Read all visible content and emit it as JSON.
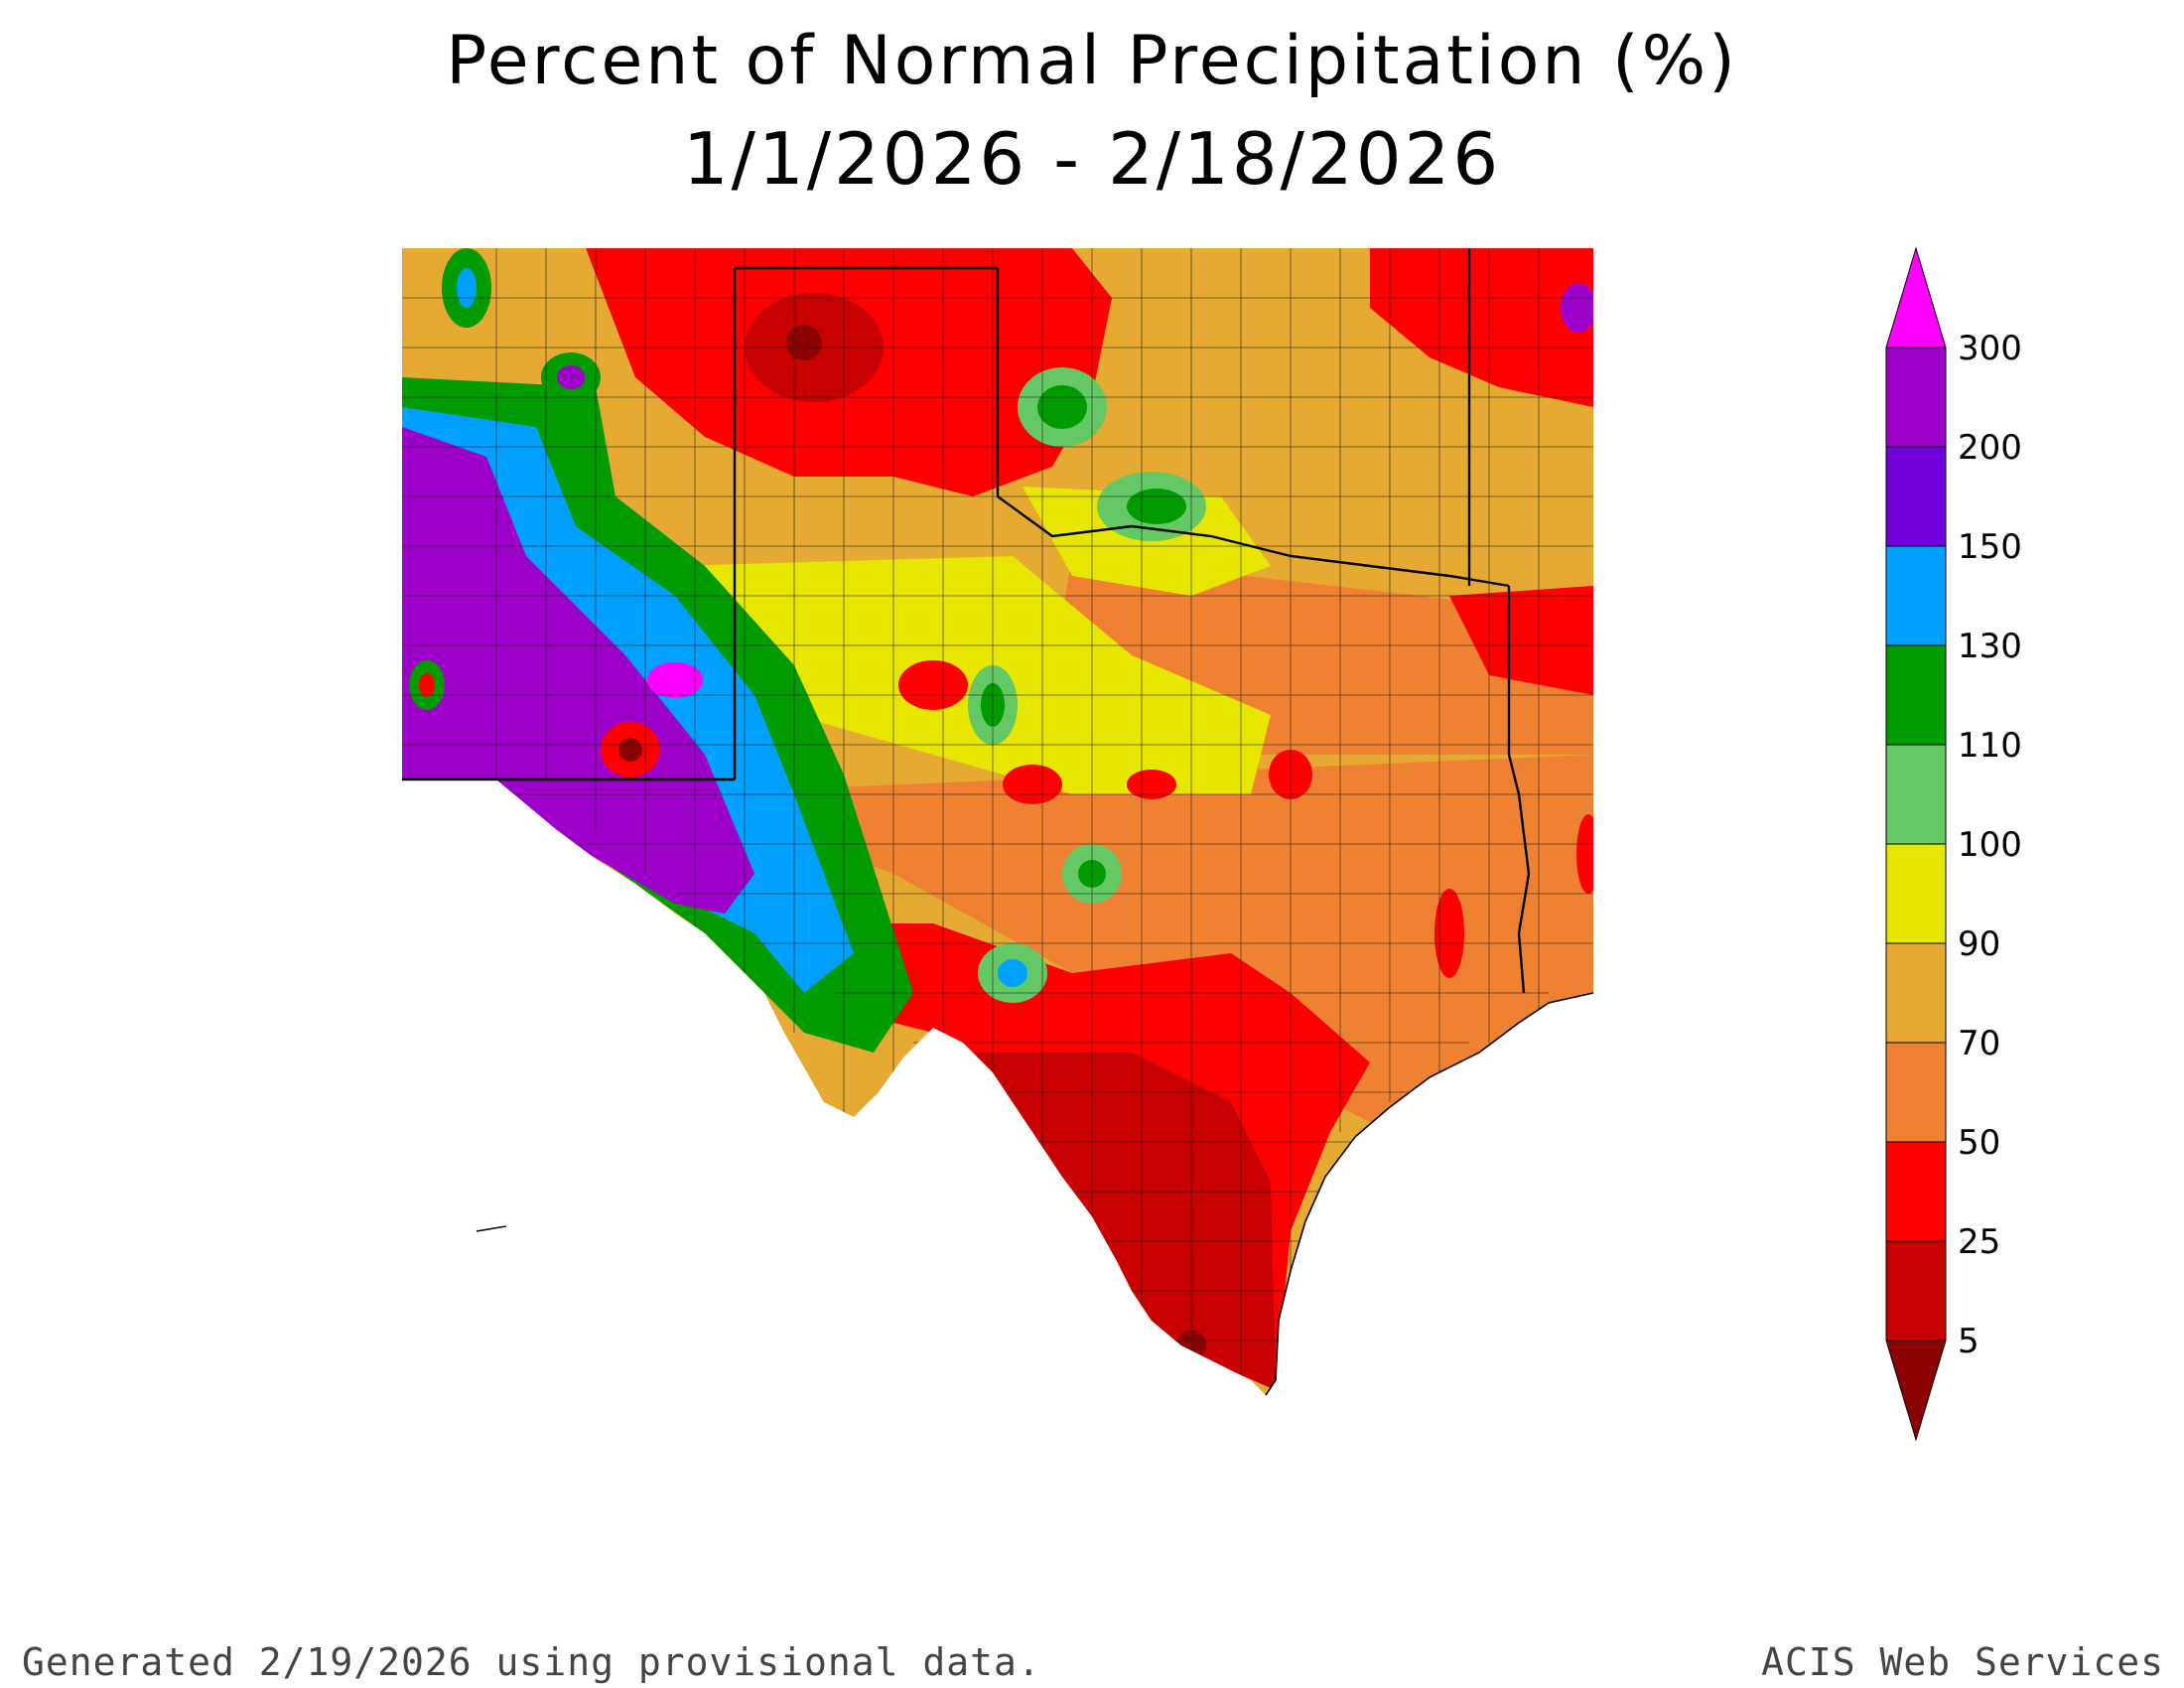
{
  "title_line1": "Percent of Normal Precipitation (%)",
  "title_line2": "1/1/2026 - 2/18/2026",
  "footer": {
    "generated": "Generated 2/19/2026  using provisional data.",
    "credit": "ACIS Web Services"
  },
  "legend": {
    "breaks": [
      {
        "label": "300",
        "color": "#ff00ff"
      },
      {
        "label": "200",
        "color": "#9d00c8"
      },
      {
        "label": "150",
        "color": "#7300dc"
      },
      {
        "label": "130",
        "color": "#00a0ff"
      },
      {
        "label": "110",
        "color": "#009b00"
      },
      {
        "label": "100",
        "color": "#64c864"
      },
      {
        "label": "90",
        "color": "#e6e600"
      },
      {
        "label": "70",
        "color": "#e6aa32"
      },
      {
        "label": "50",
        "color": "#ee8232"
      },
      {
        "label": "25",
        "color": "#ff0000"
      },
      {
        "label": "5",
        "color": "#c80000"
      }
    ],
    "bottom_color": "#8b0000",
    "top_color": "#ff00ff"
  },
  "map_colors": {
    "background": "#ffffff",
    "water": "#ffffff",
    "state_border": "#000000",
    "county_line": "#222222"
  }
}
